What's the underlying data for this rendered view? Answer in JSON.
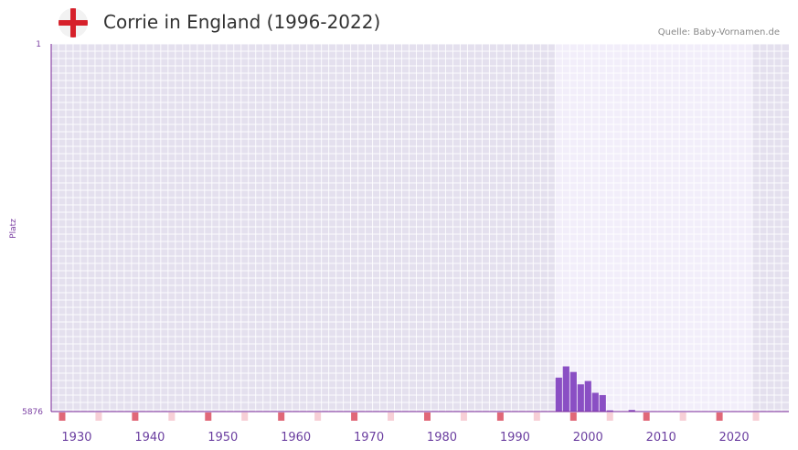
{
  "header": {
    "title": "Corrie in England (1996-2022)",
    "source": "Quelle: Baby-Vornamen.de",
    "flag_icon": "england-flag-icon"
  },
  "colors": {
    "bar": "#8a4fc4",
    "axis": "#7b2a9a",
    "tick_marker": "#e06878",
    "tick_marker_light": "#f7cfd6",
    "bg_dark": "#e4e0ee",
    "bg_light": "#f2eefa"
  },
  "chart_data": {
    "type": "bar",
    "title": "Corrie in England (1996-2022)",
    "xlabel": "",
    "ylabel": "Platz",
    "y_axis_inverted": true,
    "ylim": [
      1,
      5876
    ],
    "y_tick_labels": [
      "1",
      "5876"
    ],
    "xlim": [
      1926.5,
      2027.5
    ],
    "x_tick_labels": [
      "1930",
      "1940",
      "1950",
      "1960",
      "1970",
      "1980",
      "1990",
      "2000",
      "2010",
      "2020"
    ],
    "x_ticks": [
      1930,
      1940,
      1950,
      1960,
      1970,
      1980,
      1990,
      2000,
      2010,
      2020
    ],
    "highlight_range": [
      1996,
      2022
    ],
    "series": [
      {
        "name": "Corrie",
        "x": [
          1996,
          1997,
          1998,
          1999,
          2000,
          2001,
          2002,
          2003,
          2006,
          2022
        ],
        "ranks": [
          5333,
          5153,
          5243,
          5441,
          5387,
          5576,
          5612,
          5856,
          5850,
          5870
        ]
      }
    ]
  }
}
